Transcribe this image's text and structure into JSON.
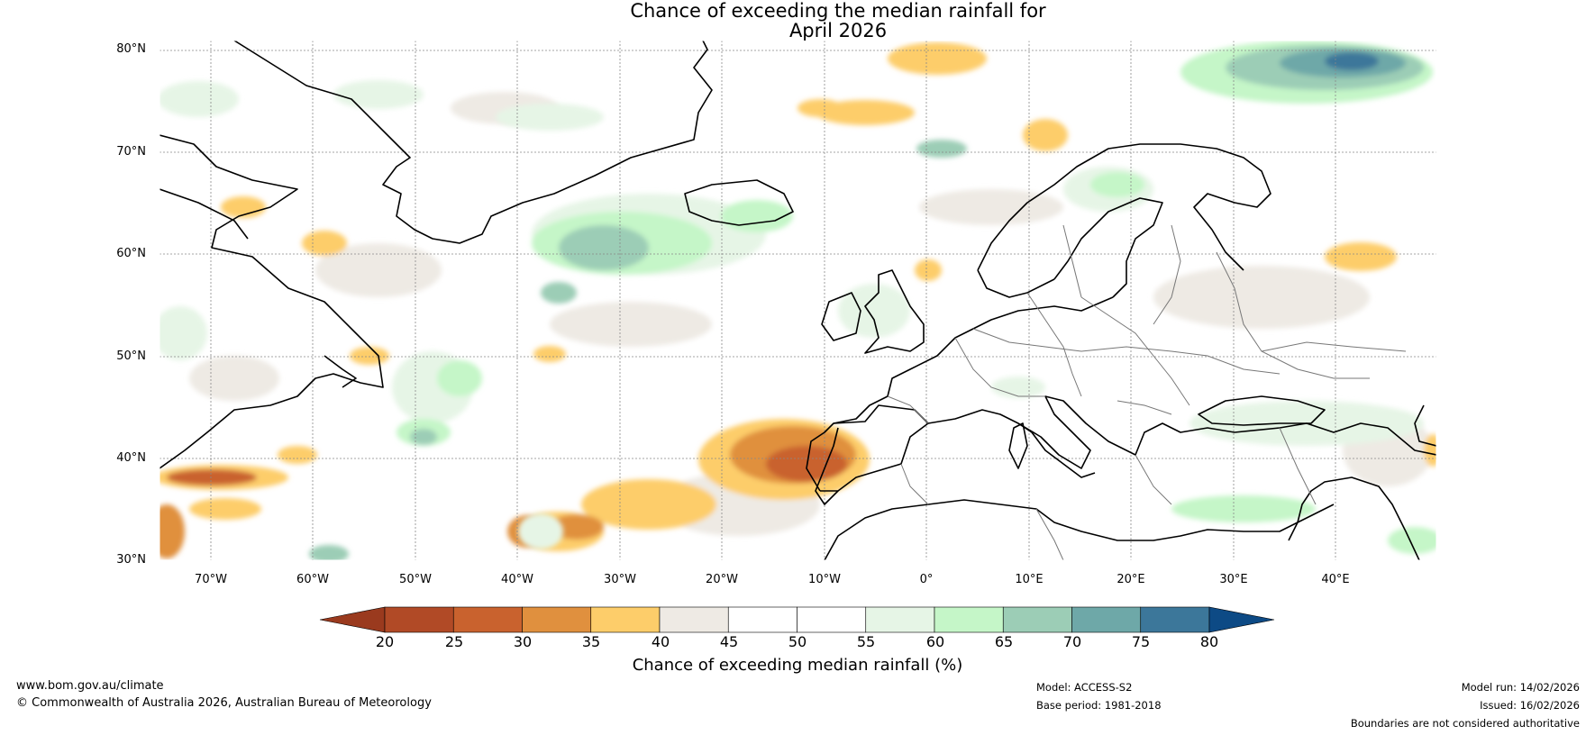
{
  "title_line1": "Chance of exceeding the median rainfall for",
  "title_line2": "April 2026",
  "map": {
    "lat_range": [
      30,
      80
    ],
    "lon_range": [
      -75,
      50
    ],
    "lat_labels": [
      "80°N",
      "70°N",
      "60°N",
      "50°N",
      "40°N",
      "30°N"
    ],
    "lon_labels": [
      "70°W",
      "60°W",
      "50°W",
      "40°W",
      "30°W",
      "20°W",
      "10°W",
      "0°",
      "10°E",
      "20°E",
      "30°E",
      "40°E"
    ],
    "background_color": "#ffffff",
    "coast_color": "#000000",
    "border_color": "#777777"
  },
  "colorbar": {
    "label": "Chance of exceeding median rainfall (%)",
    "ticks": [
      "20",
      "25",
      "30",
      "35",
      "40",
      "45",
      "50",
      "55",
      "60",
      "65",
      "70",
      "75",
      "80"
    ],
    "low_extend_color": "#9a3a1e",
    "high_extend_color": "#0d4a85",
    "colors": [
      "#b14a26",
      "#c9622e",
      "#e0903e",
      "#fdcd6a",
      "#eeeae4",
      "#ffffff",
      "#ffffff",
      "#e6f5e6",
      "#c5f6c8",
      "#9ccdb6",
      "#6ea8a8",
      "#3c779a"
    ]
  },
  "footer": {
    "website": "www.bom.gov.au/climate",
    "copyright": "© Commonwealth of Australia 2026, Australian Bureau of Meteorology",
    "model": "Model: ACCESS-S2",
    "base_period": "Base period: 1981-2018",
    "model_run": "Model run: 14/02/2026",
    "issued": "Issued: 16/02/2026",
    "disclaimer": "Boundaries are not considered authoritative"
  }
}
